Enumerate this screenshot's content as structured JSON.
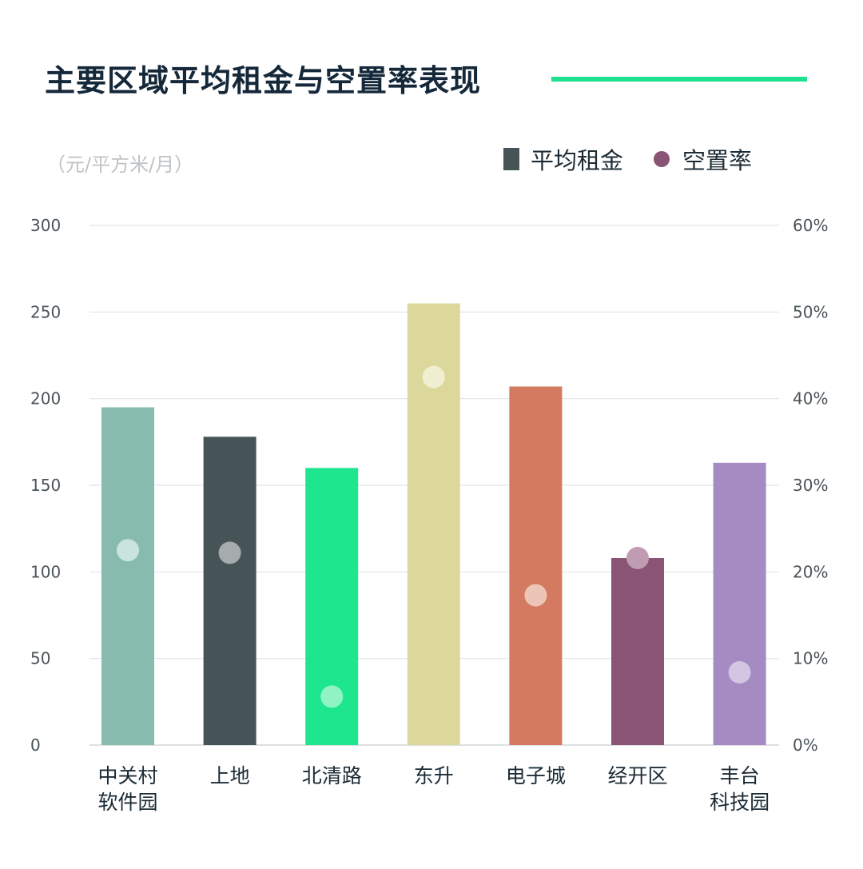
{
  "title": "主要区域平均租金与空置率表现",
  "unit_label": "（元/平方米/月）",
  "legend": {
    "rent_label": "平均租金",
    "vacancy_label": "空置率",
    "rent_color": "#465357",
    "vacancy_color": "#8a5475"
  },
  "chart_data": {
    "type": "bar",
    "categories": [
      [
        "中关村",
        "软件园"
      ],
      [
        "上地"
      ],
      [
        "北清路"
      ],
      [
        "东升"
      ],
      [
        "电子城"
      ],
      [
        "经开区"
      ],
      [
        "丰台",
        "科技园"
      ]
    ],
    "series": [
      {
        "name": "平均租金",
        "type": "bar",
        "axis": "left",
        "values": [
          195,
          178,
          160,
          255,
          207,
          108,
          163
        ],
        "colors": [
          "#86bbae",
          "#465357",
          "#1de68f",
          "#dcd89b",
          "#d37a60",
          "#8a5475",
          "#a58bc2"
        ]
      },
      {
        "name": "空置率",
        "type": "scatter",
        "axis": "right",
        "values": [
          22.5,
          22.2,
          5.6,
          42.5,
          17.3,
          21.6,
          8.4
        ],
        "marker_colors": [
          "#cbe3dd",
          "#a6acae",
          "#8ff3c4",
          "#f1efd1",
          "#ecc5b7",
          "#c09cb3",
          "#d3c6e2"
        ]
      }
    ],
    "y_left": {
      "min": 0,
      "max": 300,
      "ticks": [
        "0",
        "50",
        "100",
        "150",
        "200",
        "250",
        "300"
      ]
    },
    "y_right": {
      "min": 0,
      "max": 60,
      "ticks": [
        "0%",
        "10%",
        "20%",
        "30%",
        "40%",
        "50%",
        "60%"
      ]
    },
    "grid": true,
    "legend_position": "top-right"
  }
}
